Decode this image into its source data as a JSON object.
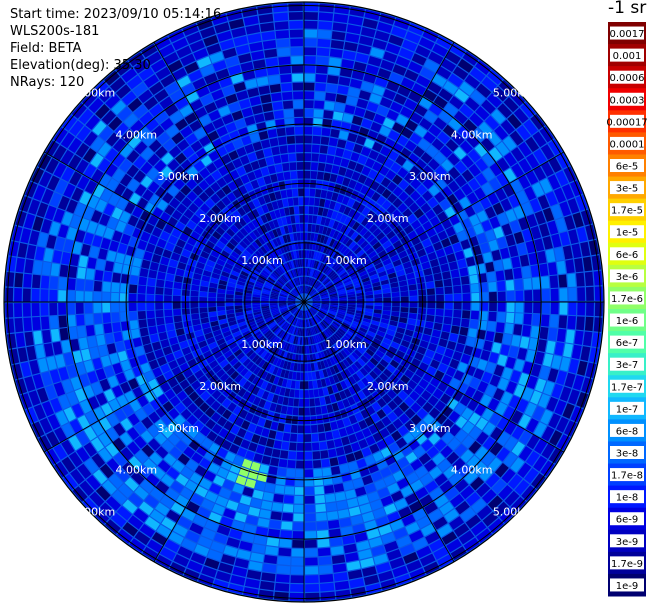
{
  "meta": {
    "start_time": "Start time: 2023/09/10 05:14:16",
    "instrument": "WLS200s-181",
    "field": "Field: BETA",
    "elevation": "Elevation(deg): 35.30",
    "nrays": "NRays: 120",
    "unit": "-1 sr"
  },
  "chart_data": {
    "type": "heatmap",
    "projection": "polar-ppi",
    "field": "BETA",
    "elevation_deg": 35.3,
    "nrays": 120,
    "range_rings_km": [
      1,
      2,
      3,
      4,
      5
    ],
    "ring_labels": [
      "1.00km",
      "2.00km",
      "3.00km",
      "4.00km",
      "5.00km"
    ],
    "range_max_km": 5.06,
    "spokes_deg": [
      0,
      30,
      60,
      90,
      120,
      150,
      180,
      210,
      240,
      270,
      300,
      330
    ],
    "dominant_value": "3e-9",
    "features": [
      {
        "description": "enhanced ring",
        "range_km": [
          2.8,
          4.6
        ],
        "value": "1e-7"
      },
      {
        "description": "strong patch",
        "azimuth_deg": 195,
        "range_km": 3.1,
        "value": "1.7e-6"
      }
    ],
    "colorbar": {
      "labels": [
        "0.0017",
        "0.001",
        "0.0006",
        "0.0003",
        "0.00017",
        "0.0001",
        "6e-5",
        "3e-5",
        "1.7e-5",
        "1e-5",
        "6e-6",
        "3e-6",
        "1.7e-6",
        "1e-6",
        "6e-7",
        "3e-7",
        "1.7e-7",
        "1e-7",
        "6e-8",
        "3e-8",
        "1.7e-8",
        "1e-8",
        "6e-9",
        "3e-9",
        "1.7e-9",
        "1e-9"
      ],
      "colors": [
        "#7f0000",
        "#a00000",
        "#c80000",
        "#f00000",
        "#ff3000",
        "#ff5a00",
        "#ff8000",
        "#ffa800",
        "#ffd000",
        "#fff000",
        "#e0ff10",
        "#b8ff40",
        "#90ff68",
        "#70ff88",
        "#50ffa8",
        "#38f0c8",
        "#20d8f0",
        "#10b8ff",
        "#0090ff",
        "#0068ff",
        "#0040ff",
        "#0018ff",
        "#0000e0",
        "#0000c0",
        "#00009a",
        "#000070"
      ]
    },
    "colors": {
      "background": "#0a59e6",
      "grid_lines": "#000000",
      "ray_gaps": "#ffffff",
      "ring_label_text": "#ffffff"
    }
  }
}
